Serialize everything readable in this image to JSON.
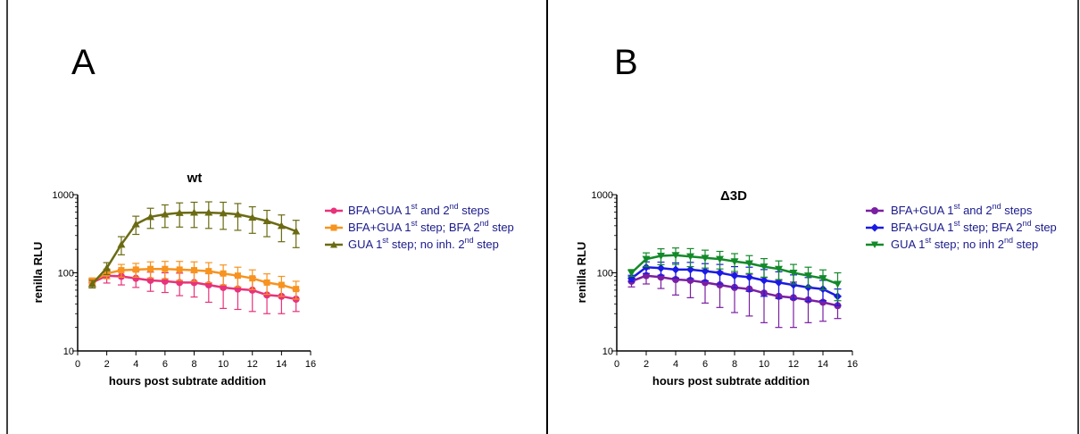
{
  "chart_data": [
    {
      "type": "line",
      "panel_label": "A",
      "title": "wt",
      "xlabel": "hours post subtrate addition",
      "ylabel": "renilla RLU",
      "xlim": [
        0,
        16
      ],
      "ylim": [
        10,
        1000
      ],
      "yscale": "log",
      "xticks": [
        0,
        2,
        4,
        6,
        8,
        10,
        12,
        14,
        16
      ],
      "yticks": [
        10,
        100,
        1000
      ],
      "legend_placement": "right",
      "x": [
        1,
        2,
        3,
        4,
        5,
        6,
        7,
        8,
        9,
        10,
        11,
        12,
        13,
        14,
        15
      ],
      "series": [
        {
          "legend": {
            "a": "BFA+GUA 1",
            "b": "st",
            "c": " and 2",
            "d": "nd",
            "e": " steps"
          },
          "color": "#e8327a",
          "marker": "circle",
          "values": [
            75,
            92,
            90,
            85,
            80,
            78,
            75,
            75,
            70,
            65,
            62,
            60,
            52,
            50,
            46
          ],
          "errors": [
            8,
            18,
            20,
            20,
            22,
            22,
            24,
            26,
            28,
            30,
            28,
            28,
            22,
            20,
            14
          ]
        },
        {
          "legend": {
            "a": "BFA+GUA 1",
            "b": "st",
            "c": " step; BFA 2",
            "d": "nd",
            "e": " step"
          },
          "color": "#f7931e",
          "marker": "square",
          "values": [
            78,
            98,
            108,
            110,
            112,
            112,
            110,
            108,
            105,
            98,
            92,
            85,
            75,
            70,
            62
          ],
          "errors": [
            8,
            14,
            20,
            22,
            26,
            28,
            30,
            30,
            30,
            28,
            26,
            24,
            22,
            20,
            16
          ]
        },
        {
          "legend": {
            "a": "GUA 1",
            "b": "st",
            "c": " step; no inh. 2",
            "d": "nd",
            "e": " step"
          },
          "color": "#6b6b14",
          "marker": "triangle",
          "values": [
            72,
            115,
            230,
            420,
            520,
            560,
            585,
            590,
            590,
            580,
            560,
            510,
            460,
            400,
            340
          ],
          "errors": [
            8,
            20,
            60,
            110,
            150,
            180,
            200,
            210,
            220,
            220,
            210,
            190,
            170,
            150,
            130
          ]
        }
      ]
    },
    {
      "type": "line",
      "panel_label": "B",
      "title": "Δ3D",
      "xlabel": "hours post subtrate addition",
      "ylabel": "renilla RLU",
      "xlim": [
        0,
        16
      ],
      "ylim": [
        10,
        1000
      ],
      "yscale": "log",
      "xticks": [
        0,
        2,
        4,
        6,
        8,
        10,
        12,
        14,
        16
      ],
      "yticks": [
        10,
        100,
        1000
      ],
      "legend_placement": "right",
      "x": [
        1,
        2,
        3,
        4,
        5,
        6,
        7,
        8,
        9,
        10,
        11,
        12,
        13,
        14,
        15
      ],
      "series": [
        {
          "legend": {
            "a": "BFA+GUA 1",
            "b": "st",
            "c": " and 2",
            "d": "nd",
            "e": " steps"
          },
          "color": "#7b1fa2",
          "marker": "circle",
          "values": [
            78,
            92,
            88,
            82,
            80,
            75,
            70,
            65,
            62,
            55,
            50,
            48,
            45,
            42,
            38
          ],
          "errors": [
            12,
            20,
            25,
            30,
            32,
            34,
            34,
            34,
            34,
            32,
            30,
            28,
            22,
            18,
            12
          ]
        },
        {
          "legend": {
            "a": "BFA+GUA 1",
            "b": "st",
            "c": " step; BFA 2",
            "d": "nd",
            "e": " step"
          },
          "color": "#1a1ae6",
          "marker": "diamond",
          "values": [
            85,
            118,
            115,
            110,
            110,
            105,
            100,
            92,
            88,
            80,
            75,
            70,
            65,
            62,
            50
          ],
          "errors": [
            8,
            20,
            22,
            24,
            26,
            26,
            28,
            28,
            30,
            30,
            28,
            24,
            22,
            18,
            12
          ]
        },
        {
          "legend": {
            "a": "GUA 1",
            "b": "st",
            "c": " step; no inh 2",
            "d": "nd",
            "e": " step"
          },
          "color": "#138a2a",
          "marker": "triangle-down",
          "values": [
            100,
            150,
            165,
            168,
            162,
            155,
            150,
            140,
            132,
            120,
            112,
            100,
            92,
            85,
            72
          ],
          "errors": [
            10,
            30,
            38,
            40,
            42,
            40,
            38,
            36,
            34,
            32,
            30,
            28,
            26,
            24,
            28
          ]
        }
      ]
    }
  ]
}
